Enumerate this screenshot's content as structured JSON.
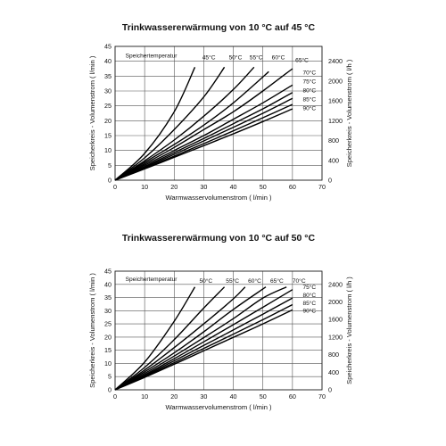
{
  "chart_data": [
    {
      "type": "line",
      "title": "Trinkwassererwärmung von 10 °C auf 45 °C",
      "xlabel": "Warmwasservolumenstrom  ( l/min )",
      "ylabel": "Speicherkreis - Volumenstrom ( l/min )",
      "y2label": "Speicherkreis - Volumenstrom ( l/h )",
      "legend_title": "Speichertemperatur",
      "xlim": [
        0,
        70
      ],
      "ylim": [
        0,
        45
      ],
      "y2lim": [
        0,
        2700
      ],
      "xticks": [
        "0",
        "10",
        "20",
        "30",
        "40",
        "50",
        "60",
        "70"
      ],
      "yticks": [
        "0",
        "5",
        "10",
        "15",
        "20",
        "25",
        "30",
        "35",
        "40",
        "45"
      ],
      "y2ticks": [
        "0",
        "400",
        "800",
        "1200",
        "1600",
        "2000",
        "2400"
      ],
      "grid": true,
      "series": [
        {
          "name": "45°C",
          "x": [
            0,
            10,
            20,
            27
          ],
          "y": [
            0,
            9,
            23,
            38
          ]
        },
        {
          "name": "50°C",
          "x": [
            0,
            10,
            20,
            30,
            37
          ],
          "y": [
            0,
            7.5,
            17,
            28,
            38
          ]
        },
        {
          "name": "55°C",
          "x": [
            0,
            10,
            20,
            30,
            40,
            47
          ],
          "y": [
            0,
            6.5,
            13.5,
            21.5,
            30.5,
            38
          ]
        },
        {
          "name": "60°C",
          "x": [
            0,
            10,
            20,
            30,
            40,
            52
          ],
          "y": [
            0,
            6,
            12,
            18.5,
            26,
            36.5
          ]
        },
        {
          "name": "65°C",
          "x": [
            0,
            10,
            20,
            30,
            40,
            50,
            60
          ],
          "y": [
            0,
            5.5,
            11,
            17,
            23,
            30,
            37.5
          ]
        },
        {
          "name": "70°C",
          "x": [
            0,
            10,
            20,
            30,
            40,
            50,
            60
          ],
          "y": [
            0,
            5,
            10,
            15,
            20.5,
            26,
            32
          ]
        },
        {
          "name": "75°C",
          "x": [
            0,
            10,
            20,
            30,
            40,
            50,
            60
          ],
          "y": [
            0,
            4.6,
            9.3,
            14,
            19,
            24,
            29.5
          ]
        },
        {
          "name": "80°C",
          "x": [
            0,
            10,
            20,
            30,
            40,
            50,
            60
          ],
          "y": [
            0,
            4.3,
            8.7,
            13.2,
            17.8,
            22.5,
            27.5
          ]
        },
        {
          "name": "85°C",
          "x": [
            0,
            10,
            20,
            30,
            40,
            50,
            60
          ],
          "y": [
            0,
            4,
            8.1,
            12.3,
            16.6,
            21,
            25.5
          ]
        },
        {
          "name": "90°C",
          "x": [
            0,
            10,
            20,
            30,
            40,
            50,
            60
          ],
          "y": [
            0,
            3.8,
            7.7,
            11.6,
            15.6,
            19.7,
            24
          ]
        }
      ],
      "labels": [
        {
          "text": "45°C",
          "x": 29.5,
          "y": 40.6
        },
        {
          "text": "50°C",
          "x": 38.5,
          "y": 40.6
        },
        {
          "text": "55°C",
          "x": 45.5,
          "y": 40.6
        },
        {
          "text": "60°C",
          "x": 53,
          "y": 40.6
        },
        {
          "text": "65°C",
          "x": 61,
          "y": 39.8
        },
        {
          "text": "70°C",
          "x": 63.5,
          "y": 35.5
        },
        {
          "text": "75°C",
          "x": 63.5,
          "y": 32.5
        },
        {
          "text": "80°C",
          "x": 63.5,
          "y": 29.5
        },
        {
          "text": "85°C",
          "x": 63.5,
          "y": 26.5
        },
        {
          "text": "90°C",
          "x": 63.5,
          "y": 23.5
        }
      ]
    },
    {
      "type": "line",
      "title": "Trinkwassererwärmung von 10 °C auf 50 °C",
      "xlabel": "Warmwasservolumenstrom  ( l/min )",
      "ylabel": "Speicherkreis - Volumenstrom ( l/min )",
      "y2label": "Speicherkreis - Volumenstrom ( l/h )",
      "legend_title": "Speichertemperatur",
      "xlim": [
        0,
        70
      ],
      "ylim": [
        0,
        45
      ],
      "y2lim": [
        0,
        2700
      ],
      "xticks": [
        "0",
        "10",
        "20",
        "30",
        "40",
        "50",
        "60",
        "70"
      ],
      "yticks": [
        "0",
        "5",
        "10",
        "15",
        "20",
        "25",
        "30",
        "35",
        "40",
        "45"
      ],
      "y2ticks": [
        "0",
        "400",
        "800",
        "1200",
        "1600",
        "2000",
        "2400"
      ],
      "grid": true,
      "series": [
        {
          "name": "50°C",
          "x": [
            0,
            10,
            20,
            27
          ],
          "y": [
            0,
            10.5,
            26,
            39
          ]
        },
        {
          "name": "55°C",
          "x": [
            0,
            10,
            20,
            30,
            37
          ],
          "y": [
            0,
            8.5,
            19,
            31,
            39
          ]
        },
        {
          "name": "60°C",
          "x": [
            0,
            10,
            20,
            30,
            40,
            44
          ],
          "y": [
            0,
            7.5,
            16,
            25,
            34.5,
            39
          ]
        },
        {
          "name": "65°C",
          "x": [
            0,
            10,
            20,
            30,
            40,
            51
          ],
          "y": [
            0,
            6.8,
            14,
            22,
            30.5,
            39
          ]
        },
        {
          "name": "70°C",
          "x": [
            0,
            10,
            20,
            30,
            40,
            50,
            58
          ],
          "y": [
            0,
            6.2,
            12.8,
            19.8,
            27,
            34.8,
            39
          ]
        },
        {
          "name": "75°C",
          "x": [
            0,
            10,
            20,
            30,
            40,
            50,
            60
          ],
          "y": [
            0,
            5.7,
            11.8,
            18.2,
            24.7,
            31.3,
            38
          ]
        },
        {
          "name": "80°C",
          "x": [
            0,
            10,
            20,
            30,
            40,
            50,
            60
          ],
          "y": [
            0,
            5.3,
            11,
            16.8,
            22.7,
            28.7,
            34.8
          ]
        },
        {
          "name": "85°C",
          "x": [
            0,
            10,
            20,
            30,
            40,
            50,
            60
          ],
          "y": [
            0,
            5,
            10.3,
            15.7,
            21.1,
            26.6,
            32.3
          ]
        },
        {
          "name": "90°C",
          "x": [
            0,
            10,
            20,
            30,
            40,
            50,
            60
          ],
          "y": [
            0,
            4.7,
            9.7,
            14.8,
            19.9,
            25,
            30.3
          ]
        }
      ],
      "labels": [
        {
          "text": "50°C",
          "x": 28.5,
          "y": 40.6
        },
        {
          "text": "55°C",
          "x": 37.5,
          "y": 40.6
        },
        {
          "text": "60°C",
          "x": 45,
          "y": 40.6
        },
        {
          "text": "65°C",
          "x": 52.5,
          "y": 40.6
        },
        {
          "text": "70°C",
          "x": 60,
          "y": 40.6
        },
        {
          "text": "75°C",
          "x": 63.5,
          "y": 38.2
        },
        {
          "text": "80°C",
          "x": 63.5,
          "y": 35.2
        },
        {
          "text": "85°C",
          "x": 63.5,
          "y": 32.2
        },
        {
          "text": "90°C",
          "x": 63.5,
          "y": 29.2
        }
      ]
    }
  ]
}
